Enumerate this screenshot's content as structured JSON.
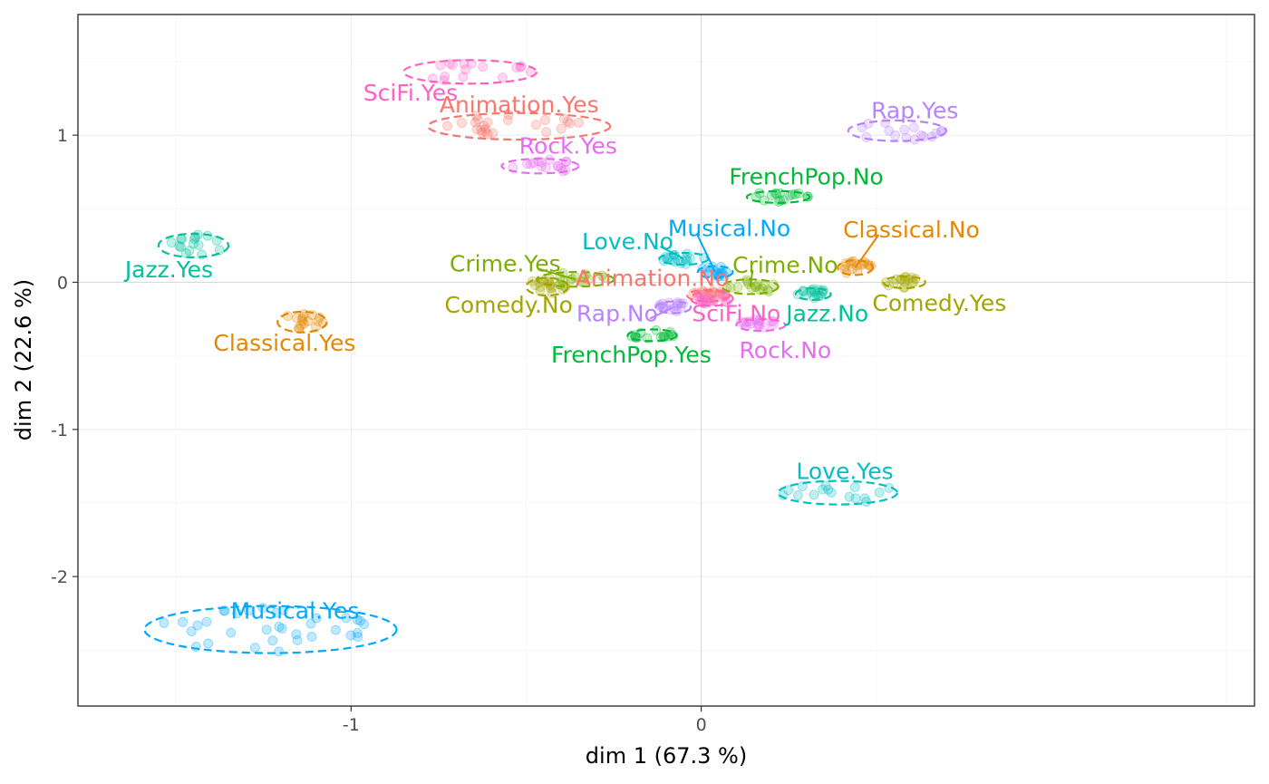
{
  "chart_data": {
    "type": "scatter",
    "title": "",
    "xlabel": "dim 1 (67.3 %)",
    "ylabel": "dim 2 (22.6 %)",
    "xlim": [
      -1.78,
      1.58
    ],
    "ylim": [
      -2.88,
      1.82
    ],
    "x_ticks": [
      {
        "value": -1,
        "label": "-1"
      },
      {
        "value": 0,
        "label": "0"
      }
    ],
    "y_ticks": [
      {
        "value": -2,
        "label": "-2"
      },
      {
        "value": -1,
        "label": "-1"
      },
      {
        "value": 0,
        "label": "0"
      },
      {
        "value": 1,
        "label": "1"
      }
    ],
    "grid": true,
    "legend": "none",
    "point_alpha": 0.25,
    "ellipse_style": "dashed",
    "categories": [
      {
        "name": "SciFi.Yes",
        "color": "#FF61C3",
        "cx": -0.66,
        "cy": 1.43,
        "rx": 0.19,
        "ry": 0.08,
        "label_x": -0.83,
        "label_y": 1.29
      },
      {
        "name": "Animation.Yes",
        "color": "#F8766D",
        "cx": -0.52,
        "cy": 1.06,
        "rx": 0.26,
        "ry": 0.09,
        "label_x": -0.52,
        "label_y": 1.21
      },
      {
        "name": "Rock.Yes",
        "color": "#E76BF3",
        "cx": -0.46,
        "cy": 0.79,
        "rx": 0.11,
        "ry": 0.05,
        "label_x": -0.38,
        "label_y": 0.93
      },
      {
        "name": "Rap.Yes",
        "color": "#B983FF",
        "cx": 0.56,
        "cy": 1.03,
        "rx": 0.14,
        "ry": 0.07,
        "label_x": 0.61,
        "label_y": 1.17
      },
      {
        "name": "FrenchPop.No",
        "color": "#00BA38",
        "cx": 0.22,
        "cy": 0.58,
        "rx": 0.09,
        "ry": 0.04,
        "label_x": 0.3,
        "label_y": 0.72
      },
      {
        "name": "Jazz.Yes",
        "color": "#00C19A",
        "cx": -1.45,
        "cy": 0.25,
        "rx": 0.1,
        "ry": 0.08,
        "label_x": -1.52,
        "label_y": 0.09
      },
      {
        "name": "Musical.No",
        "color": "#00A9FF",
        "cx": 0.04,
        "cy": 0.07,
        "rx": 0.05,
        "ry": 0.04,
        "label_x": 0.08,
        "label_y": 0.37,
        "leader": true
      },
      {
        "name": "Love.No",
        "color": "#00BFC4",
        "cx": -0.05,
        "cy": 0.16,
        "rx": 0.07,
        "ry": 0.04,
        "label_x": -0.21,
        "label_y": 0.28,
        "leader": true
      },
      {
        "name": "Classical.No",
        "color": "#E58700",
        "cx": 0.44,
        "cy": 0.1,
        "rx": 0.05,
        "ry": 0.05,
        "label_x": 0.6,
        "label_y": 0.36,
        "leader": true
      },
      {
        "name": "Crime.Yes",
        "color": "#7CAE00",
        "cx": -0.36,
        "cy": 0.02,
        "rx": 0.11,
        "ry": 0.05,
        "label_x": -0.56,
        "label_y": 0.13,
        "leader": true
      },
      {
        "name": "Animation.No",
        "color": "#F8766D",
        "cx": 0.02,
        "cy": -0.09,
        "rx": 0.06,
        "ry": 0.04,
        "label_x": -0.14,
        "label_y": 0.03
      },
      {
        "name": "Crime.No",
        "color": "#7CAE00",
        "cx": 0.14,
        "cy": -0.03,
        "rx": 0.08,
        "ry": 0.05,
        "label_x": 0.24,
        "label_y": 0.12,
        "leader": true
      },
      {
        "name": "Comedy.No",
        "color": "#A3A500",
        "cx": -0.44,
        "cy": -0.03,
        "rx": 0.06,
        "ry": 0.06,
        "label_x": -0.55,
        "label_y": -0.15
      },
      {
        "name": "Comedy.Yes",
        "color": "#A3A500",
        "cx": 0.58,
        "cy": 0.0,
        "rx": 0.06,
        "ry": 0.04,
        "label_x": 0.68,
        "label_y": -0.14
      },
      {
        "name": "Rap.No",
        "color": "#B983FF",
        "cx": -0.08,
        "cy": -0.17,
        "rx": 0.05,
        "ry": 0.04,
        "label_x": -0.24,
        "label_y": -0.21,
        "leader": true
      },
      {
        "name": "SciFi.No",
        "color": "#FF61C3",
        "cx": 0.03,
        "cy": -0.11,
        "rx": 0.06,
        "ry": 0.05,
        "label_x": 0.1,
        "label_y": -0.21
      },
      {
        "name": "Jazz.No",
        "color": "#00C19A",
        "cx": 0.32,
        "cy": -0.08,
        "rx": 0.05,
        "ry": 0.04,
        "label_x": 0.36,
        "label_y": -0.21
      },
      {
        "name": "Rock.No",
        "color": "#E76BF3",
        "cx": 0.17,
        "cy": -0.29,
        "rx": 0.07,
        "ry": 0.04,
        "label_x": 0.24,
        "label_y": -0.46
      },
      {
        "name": "FrenchPop.Yes",
        "color": "#00BA38",
        "cx": -0.14,
        "cy": -0.36,
        "rx": 0.07,
        "ry": 0.04,
        "label_x": -0.2,
        "label_y": -0.49
      },
      {
        "name": "Classical.Yes",
        "color": "#E58700",
        "cx": -1.14,
        "cy": -0.27,
        "rx": 0.07,
        "ry": 0.07,
        "label_x": -1.19,
        "label_y": -0.41
      },
      {
        "name": "Love.Yes",
        "color": "#00BFC4",
        "cx": 0.39,
        "cy": -1.43,
        "rx": 0.17,
        "ry": 0.08,
        "label_x": 0.41,
        "label_y": -1.28
      },
      {
        "name": "Musical.Yes",
        "color": "#00A9FF",
        "cx": -1.23,
        "cy": -2.36,
        "rx": 0.36,
        "ry": 0.16,
        "label_x": -1.16,
        "label_y": -2.23
      }
    ]
  }
}
